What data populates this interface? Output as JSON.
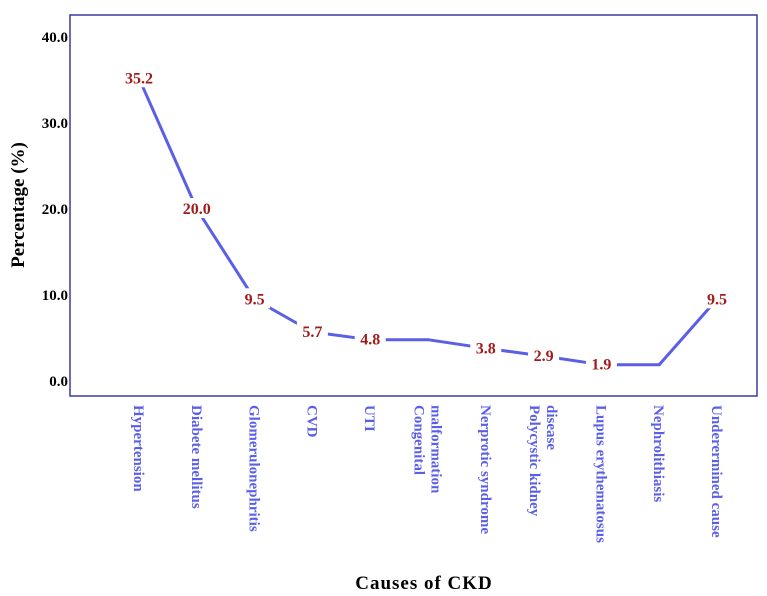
{
  "chart_data": {
    "type": "line",
    "title": "",
    "xlabel": "Causes of CKD",
    "ylabel": "Percentage (%)",
    "ylim": [
      0,
      40
    ],
    "yticks": [
      "0.0",
      "10.0",
      "20.0",
      "30.0",
      "40.0"
    ],
    "categories": [
      [
        "Hypertension"
      ],
      [
        "Diabete mellitus"
      ],
      [
        "Glomerulonephritis"
      ],
      [
        "CVD"
      ],
      [
        "UTI"
      ],
      [
        "Congenital",
        "malformation"
      ],
      [
        "Nerprotic syndrome"
      ],
      [
        "Polycystic kidney",
        "disease"
      ],
      [
        "Lupus erythematosus"
      ],
      [
        "Nephrolithiasis"
      ],
      [
        "Underermined cause"
      ]
    ],
    "values": [
      35.2,
      20.0,
      9.5,
      5.7,
      4.8,
      4.8,
      3.8,
      2.9,
      1.9,
      1.9,
      9.5
    ],
    "data_labels": [
      "35.2",
      "20.0",
      "9.5",
      "5.7",
      "4.8",
      null,
      "3.8",
      "2.9",
      "1.9",
      null,
      "9.5"
    ],
    "grid": false,
    "line_color": "#5b5fe8",
    "label_color": "#a01c1c",
    "category_color": "#5b5fe8"
  }
}
